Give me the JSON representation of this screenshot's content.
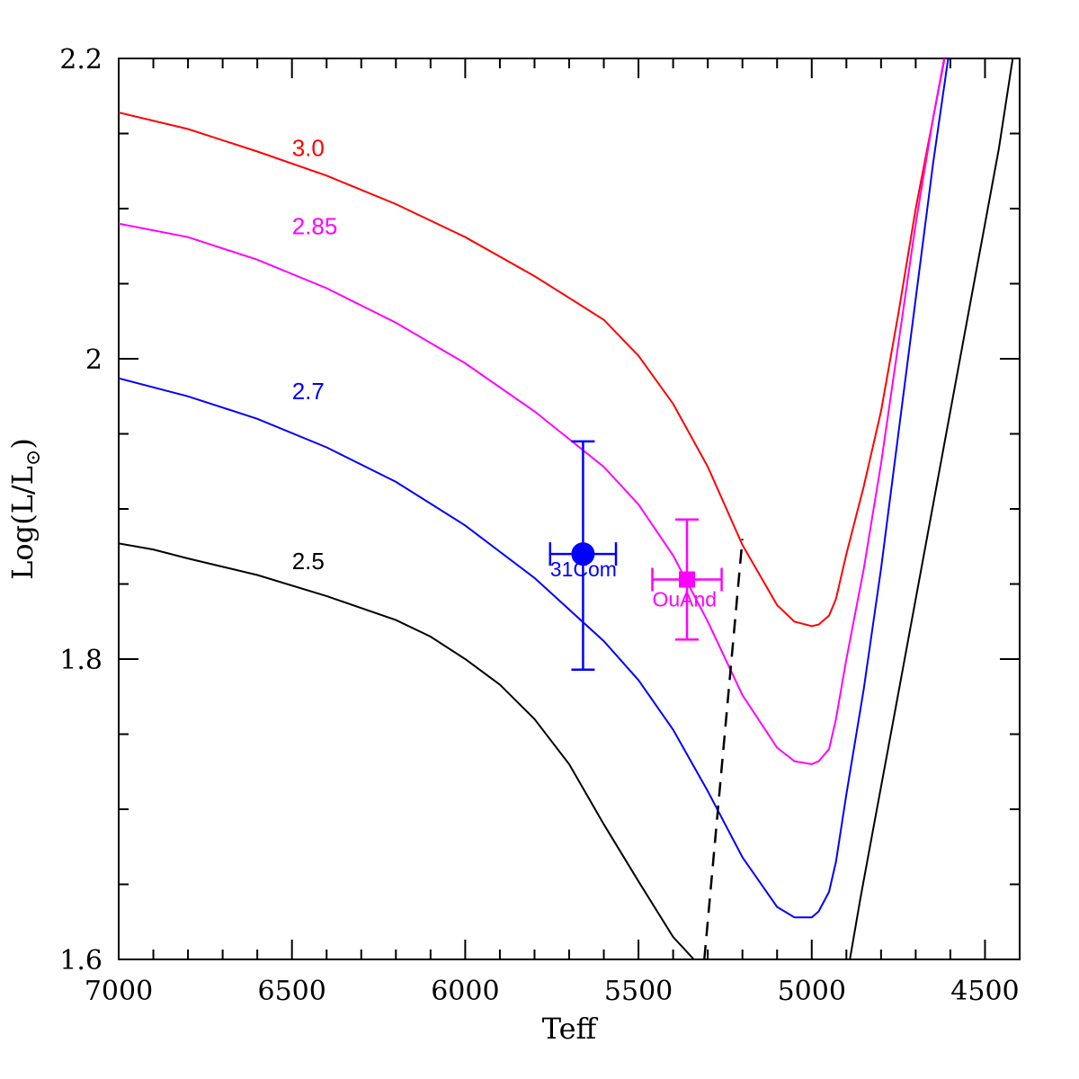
{
  "chart_data": {
    "type": "line",
    "title": "",
    "xlabel": "Teff",
    "ylabel": "Log(L/L",
    "ylabel_subscript": "⊙",
    "ylabel_suffix": ")",
    "xlim": [
      7000,
      4400
    ],
    "ylim": [
      1.6,
      2.2
    ],
    "x_reversed": true,
    "x_ticks": [
      7000,
      6500,
      6000,
      5500,
      5000,
      4500
    ],
    "x_tick_labels": [
      "7000",
      "6500",
      "6000",
      "5500",
      "5000",
      "4500"
    ],
    "y_ticks": [
      1.6,
      1.8,
      2.0,
      2.2
    ],
    "y_tick_labels": [
      "1.6",
      "1.8",
      "2",
      "2.2"
    ],
    "grid": false,
    "series": [
      {
        "name": "3.0",
        "color": "#ff0000",
        "label_at": [
          6500,
          2.135
        ],
        "x": [
          7000,
          6800,
          6600,
          6400,
          6200,
          6000,
          5800,
          5600,
          5500,
          5400,
          5300,
          5200,
          5100,
          5050,
          5000,
          4980,
          4950,
          4930,
          4900,
          4850,
          4800,
          4750,
          4700,
          4650,
          4600
        ],
        "y": [
          2.164,
          2.153,
          2.138,
          2.122,
          2.103,
          2.081,
          2.055,
          2.026,
          2.002,
          1.97,
          1.928,
          1.876,
          1.836,
          1.825,
          1.822,
          1.823,
          1.829,
          1.84,
          1.87,
          1.915,
          1.965,
          2.03,
          2.1,
          2.16,
          2.22
        ]
      },
      {
        "name": "2.85",
        "color": "#ff00ff",
        "label_at": [
          6500,
          2.083
        ],
        "x": [
          7000,
          6800,
          6600,
          6400,
          6200,
          6000,
          5800,
          5600,
          5500,
          5400,
          5300,
          5200,
          5100,
          5050,
          5000,
          4980,
          4950,
          4930,
          4900,
          4850,
          4800,
          4750,
          4700,
          4650,
          4610
        ],
        "y": [
          2.09,
          2.081,
          2.066,
          2.047,
          2.024,
          1.997,
          1.965,
          1.928,
          1.903,
          1.869,
          1.825,
          1.776,
          1.741,
          1.732,
          1.73,
          1.732,
          1.74,
          1.76,
          1.8,
          1.86,
          1.93,
          2.01,
          2.09,
          2.16,
          2.21
        ]
      },
      {
        "name": "2.7",
        "color": "#0000ff",
        "label_at": [
          6500,
          1.973
        ],
        "x": [
          7000,
          6800,
          6600,
          6400,
          6200,
          6000,
          5800,
          5600,
          5500,
          5400,
          5300,
          5200,
          5100,
          5050,
          5000,
          4980,
          4950,
          4930,
          4900,
          4850,
          4800,
          4750,
          4700,
          4650,
          4600
        ],
        "y": [
          1.987,
          1.975,
          1.96,
          1.941,
          1.918,
          1.889,
          1.854,
          1.812,
          1.786,
          1.753,
          1.712,
          1.668,
          1.635,
          1.628,
          1.628,
          1.632,
          1.645,
          1.665,
          1.71,
          1.78,
          1.86,
          1.95,
          2.04,
          2.13,
          2.21
        ]
      },
      {
        "name": "2.5",
        "color": "#000000",
        "label_at": [
          6500,
          1.86
        ],
        "x": [
          7000,
          6900,
          6800,
          6600,
          6400,
          6200,
          6100,
          6000,
          5900,
          5800,
          5700,
          5600,
          5500,
          5400,
          5340,
          5310
        ],
        "y": [
          1.877,
          1.873,
          1.867,
          1.856,
          1.842,
          1.826,
          1.815,
          1.8,
          1.783,
          1.76,
          1.73,
          1.69,
          1.652,
          1.615,
          1.6,
          1.593
        ]
      },
      {
        "name": "",
        "color": "#000000",
        "x": [
          4890,
          4860,
          4820,
          4780,
          4740,
          4700,
          4660,
          4620,
          4580,
          4540,
          4500,
          4460,
          4420
        ],
        "y": [
          1.6,
          1.64,
          1.69,
          1.74,
          1.79,
          1.84,
          1.89,
          1.94,
          1.99,
          2.04,
          2.09,
          2.14,
          2.2
        ]
      }
    ],
    "dashed_line": {
      "name": "",
      "color": "#000000",
      "x": [
        5310,
        5200
      ],
      "y": [
        1.6,
        1.88
      ]
    },
    "points": [
      {
        "name": "31Com",
        "color": "#0000ff",
        "marker": "circle",
        "x": 5660,
        "y": 1.87,
        "xerr": 95,
        "yerr_low": 0.077,
        "yerr_high": 0.075,
        "label_at": [
          5755,
          1.855
        ]
      },
      {
        "name": "OuAnd",
        "color": "#ff00ff",
        "marker": "square",
        "x": 5360,
        "y": 1.853,
        "xerr": 100,
        "yerr_low": 0.04,
        "yerr_high": 0.04,
        "label_at": [
          5460,
          1.835
        ]
      }
    ]
  }
}
